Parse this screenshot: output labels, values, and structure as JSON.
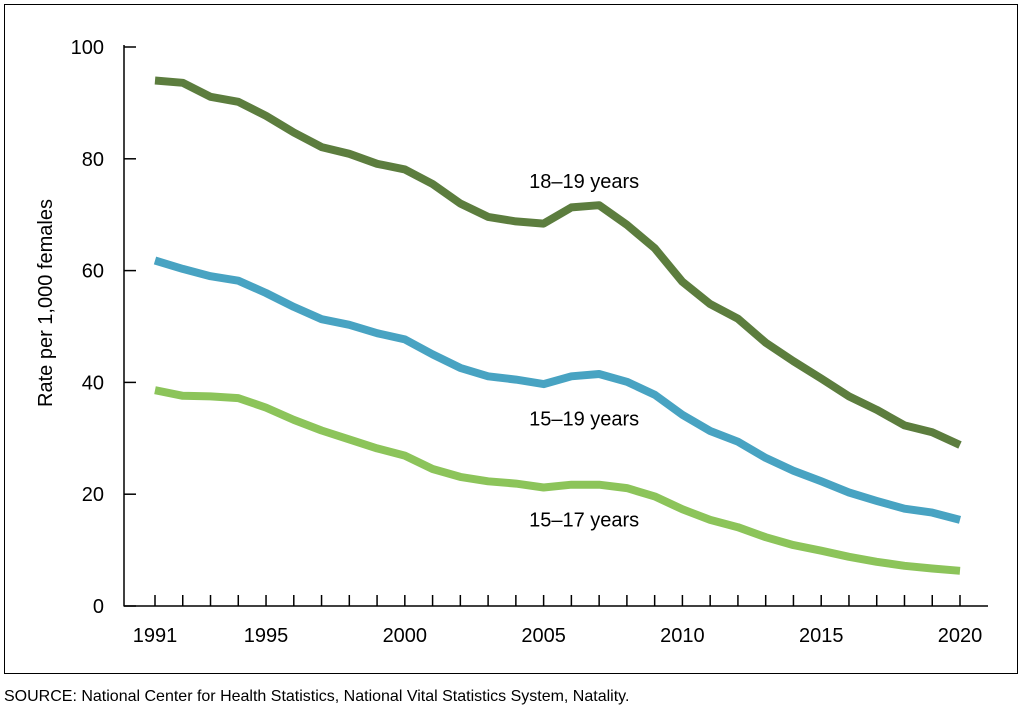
{
  "chart_data": {
    "type": "line",
    "title": "",
    "xlabel": "",
    "ylabel": "Rate per 1,000 females",
    "xlim": [
      1991,
      2020
    ],
    "ylim": [
      0,
      100
    ],
    "x_ticks": [
      "1991",
      "1995",
      "2000",
      "2005",
      "2010",
      "2015",
      "2020"
    ],
    "y_ticks": [
      "0",
      "20",
      "40",
      "60",
      "80",
      "100"
    ],
    "grid": false,
    "x": [
      1991,
      1992,
      1993,
      1994,
      1995,
      1996,
      1997,
      1998,
      1999,
      2000,
      2001,
      2002,
      2003,
      2004,
      2005,
      2006,
      2007,
      2008,
      2009,
      2010,
      2011,
      2012,
      2013,
      2014,
      2015,
      2016,
      2017,
      2018,
      2019,
      2020
    ],
    "series": [
      {
        "name": "18–19 years",
        "label": "18–19 years",
        "color": "#5c7d3e",
        "label_at": [
          2007,
          76
        ],
        "values": [
          94.0,
          93.6,
          91.1,
          90.2,
          87.7,
          84.7,
          82.1,
          80.9,
          79.1,
          78.1,
          75.5,
          72.0,
          69.6,
          68.8,
          68.4,
          71.3,
          71.7,
          68.2,
          64.0,
          58.0,
          54.0,
          51.4,
          47.1,
          43.8,
          40.7,
          37.5,
          35.1,
          32.3,
          31.1,
          28.8
        ]
      },
      {
        "name": "15–19 years",
        "label": "15–19 years",
        "color": "#48a3c2",
        "label_at": [
          2007,
          33.5
        ],
        "values": [
          61.8,
          60.3,
          59.0,
          58.2,
          56.0,
          53.5,
          51.3,
          50.3,
          48.8,
          47.7,
          45.0,
          42.6,
          41.1,
          40.5,
          39.7,
          41.1,
          41.5,
          40.1,
          37.8,
          34.2,
          31.3,
          29.4,
          26.5,
          24.2,
          22.3,
          20.3,
          18.8,
          17.4,
          16.7,
          15.4
        ]
      },
      {
        "name": "15–17 years",
        "label": "15–17 years",
        "color": "#8cc45a",
        "label_at": [
          2007,
          15.5
        ],
        "values": [
          38.6,
          37.6,
          37.5,
          37.2,
          35.5,
          33.3,
          31.4,
          29.8,
          28.2,
          26.9,
          24.5,
          23.1,
          22.3,
          21.9,
          21.2,
          21.7,
          21.7,
          21.1,
          19.6,
          17.3,
          15.4,
          14.1,
          12.3,
          10.9,
          9.9,
          8.8,
          7.9,
          7.2,
          6.7,
          6.3
        ]
      }
    ]
  },
  "source": "SOURCE: National Center for Health Statistics, National Vital Statistics System, Natality."
}
